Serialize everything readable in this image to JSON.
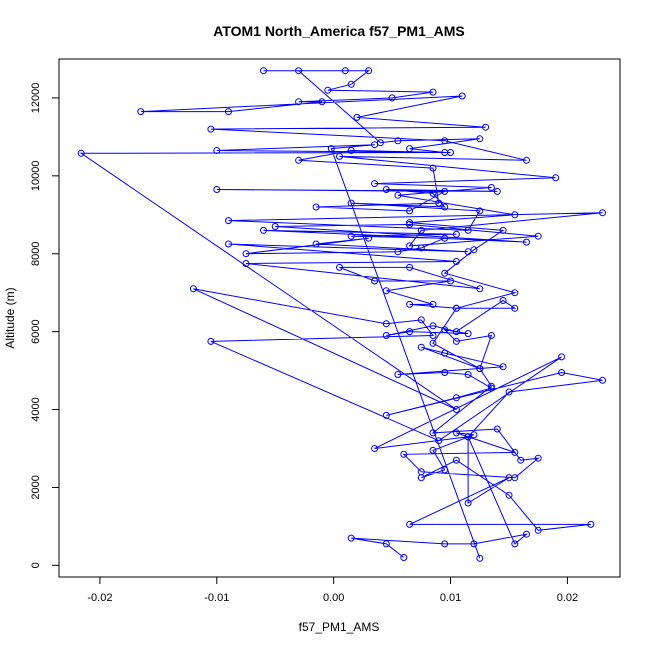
{
  "chart_data": {
    "type": "line",
    "title": "ATOM1 North_America f57_PM1_AMS",
    "xlabel": "f57_PM1_AMS",
    "ylabel": "Altitude (m)",
    "xlim": [
      -0.0235,
      0.0245
    ],
    "ylim": [
      -300,
      13000
    ],
    "xticks": [
      -0.02,
      -0.01,
      0.0,
      0.01,
      0.02
    ],
    "xtick_labels": [
      "-0.02",
      "-0.01",
      "0.00",
      "0.01",
      "0.02"
    ],
    "yticks": [
      0,
      2000,
      4000,
      6000,
      8000,
      10000,
      12000
    ],
    "ytick_labels": [
      "0",
      "2000",
      "4000",
      "6000",
      "8000",
      "10000",
      "12000"
    ],
    "grid": false,
    "color": "#0000ff",
    "marker": "open-circle",
    "series": [
      {
        "points": [
          [
            0.0125,
            180
          ],
          [
            -0.0002,
            10700
          ],
          [
            0.0035,
            10800
          ],
          [
            -0.01,
            10650
          ],
          [
            0.01,
            10600
          ],
          [
            -0.0216,
            10580
          ],
          [
            0.0105,
            4000
          ],
          [
            -0.012,
            7100
          ],
          [
            0.0045,
            6200
          ],
          [
            0.0075,
            6300
          ],
          [
            0.0085,
            5900
          ],
          [
            -0.0105,
            5750
          ],
          [
            0.009,
            3200
          ],
          [
            0.0195,
            5350
          ],
          [
            0.0035,
            3000
          ],
          [
            0.0115,
            3300
          ],
          [
            0.0155,
            2900
          ],
          [
            0.006,
            2850
          ],
          [
            0.0075,
            2400
          ],
          [
            0.0155,
            2250
          ],
          [
            0.0175,
            2750
          ],
          [
            0.016,
            2700
          ],
          [
            0.014,
            3500
          ],
          [
            0.0085,
            3400
          ],
          [
            0.0135,
            4600
          ],
          [
            0.0125,
            5050
          ],
          [
            0.0085,
            5700
          ],
          [
            0.0105,
            6600
          ],
          [
            0.0155,
            7000
          ],
          [
            0.0095,
            7500
          ],
          [
            0.012,
            8100
          ],
          [
            0.0145,
            8600
          ],
          [
            0.0065,
            8800
          ],
          [
            0.0155,
            9000
          ],
          [
            0.0055,
            9500
          ],
          [
            0.0135,
            9700
          ],
          [
            0.0035,
            9800
          ],
          [
            0.019,
            9950
          ],
          [
            0.0005,
            10500
          ],
          [
            0.0165,
            10400
          ],
          [
            0.0095,
            10900
          ],
          [
            -0.0105,
            11200
          ],
          [
            0.013,
            11250
          ],
          [
            0.002,
            11500
          ],
          [
            0.011,
            12050
          ],
          [
            -0.0165,
            11650
          ],
          [
            -0.009,
            11650
          ],
          [
            -0.001,
            11900
          ],
          [
            -0.003,
            11900
          ],
          [
            0.005,
            12000
          ],
          [
            0.0085,
            12150
          ],
          [
            -0.0005,
            12200
          ],
          [
            0.0015,
            12350
          ],
          [
            0.003,
            12700
          ],
          [
            0.001,
            12700
          ],
          [
            -0.006,
            12700
          ],
          [
            -0.003,
            12700
          ],
          [
            0.004,
            10850
          ],
          [
            0.0055,
            10900
          ],
          [
            0.0125,
            10950
          ],
          [
            0.0065,
            10700
          ],
          [
            0.0095,
            10600
          ],
          [
            0.0015,
            10650
          ],
          [
            -0.003,
            10400
          ],
          [
            0.0085,
            10200
          ],
          [
            0.009,
            9300
          ],
          [
            -0.0015,
            9200
          ],
          [
            0.0065,
            9100
          ],
          [
            0.0095,
            9600
          ],
          [
            -0.01,
            9650
          ],
          [
            0.014,
            9600
          ],
          [
            0.0045,
            9650
          ],
          [
            0.0085,
            9550
          ],
          [
            0.0095,
            9200
          ],
          [
            0.0015,
            9300
          ],
          [
            0.0125,
            9100
          ],
          [
            0.0115,
            8600
          ],
          [
            -0.009,
            8850
          ],
          [
            0.023,
            9050
          ],
          [
            0.0075,
            8600
          ],
          [
            0.0065,
            8200
          ],
          [
            0.0175,
            8450
          ],
          [
            0.0065,
            8750
          ],
          [
            -0.005,
            8700
          ],
          [
            0.0165,
            8300
          ],
          [
            -0.006,
            8600
          ],
          [
            0.0105,
            8500
          ],
          [
            0.0015,
            8450
          ],
          [
            0.0095,
            8400
          ],
          [
            0.0075,
            8150
          ],
          [
            0.0055,
            8050
          ],
          [
            -0.0075,
            8000
          ],
          [
            0.003,
            8400
          ],
          [
            -0.0015,
            8250
          ],
          [
            0.0115,
            8050
          ],
          [
            -0.009,
            8250
          ],
          [
            0.0105,
            7800
          ],
          [
            -0.0075,
            7750
          ],
          [
            0.0125,
            7100
          ],
          [
            0.0065,
            7650
          ],
          [
            0.0005,
            7650
          ],
          [
            0.0035,
            7300
          ],
          [
            0.01,
            7300
          ],
          [
            0.0045,
            7050
          ],
          [
            0.0085,
            6700
          ],
          [
            0.0065,
            6700
          ],
          [
            0.0105,
            6600
          ],
          [
            0.0155,
            6600
          ],
          [
            0.0145,
            6800
          ],
          [
            0.0105,
            6000
          ],
          [
            0.0085,
            6150
          ],
          [
            0.0045,
            5900
          ],
          [
            0.0065,
            6000
          ],
          [
            0.0115,
            5950
          ],
          [
            0.0095,
            6050
          ],
          [
            0.0105,
            5750
          ],
          [
            0.0135,
            5900
          ],
          [
            0.0125,
            5050
          ],
          [
            0.0075,
            5600
          ],
          [
            0.0095,
            5450
          ],
          [
            0.0145,
            5100
          ],
          [
            0.0055,
            4900
          ],
          [
            0.0095,
            4950
          ],
          [
            0.0115,
            4900
          ],
          [
            0.0135,
            4550
          ],
          [
            0.0105,
            4300
          ],
          [
            0.0045,
            3850
          ],
          [
            0.0195,
            4950
          ],
          [
            0.023,
            4750
          ],
          [
            0.015,
            4450
          ],
          [
            0.0115,
            3300
          ],
          [
            0.0105,
            3400
          ],
          [
            0.012,
            3350
          ],
          [
            0.0085,
            2950
          ],
          [
            0.0095,
            2450
          ],
          [
            0.0075,
            2250
          ],
          [
            0.0105,
            2700
          ],
          [
            0.015,
            1800
          ],
          [
            0.0175,
            900
          ],
          [
            0.022,
            1050
          ],
          [
            0.0065,
            1050
          ],
          [
            0.015,
            2250
          ],
          [
            0.0115,
            1600
          ],
          [
            0.0115,
            3300
          ],
          [
            0.0155,
            550
          ],
          [
            0.0165,
            800
          ],
          [
            0.012,
            550
          ],
          [
            0.0095,
            550
          ],
          [
            0.0015,
            700
          ],
          [
            0.0045,
            550
          ],
          [
            0.006,
            200
          ]
        ]
      }
    ]
  }
}
